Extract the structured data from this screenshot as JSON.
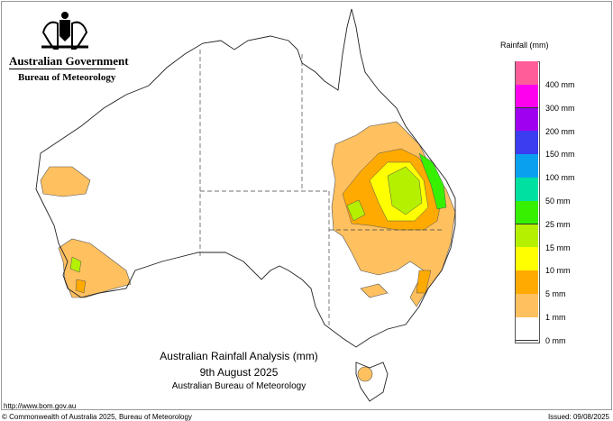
{
  "header": {
    "government": "Australian Government",
    "agency": "Bureau of Meteorology"
  },
  "title": {
    "line1": "Australian Rainfall Analysis (mm)",
    "line2": "9th August 2025",
    "line3": "Australian Bureau of Meteorology"
  },
  "footer": {
    "url": "http://www.bom.gov.au",
    "copyright": "© Commonwealth of Australia 2025, Bureau of Meteorology",
    "issued": "Issued: 09/08/2025"
  },
  "legend": {
    "title": "Rainfall (mm)",
    "colors": [
      "#ff5c9a",
      "#ff00ee",
      "#a000f0",
      "#3c3cf0",
      "#0aa0f0",
      "#00e0a0",
      "#36f000",
      "#b4f000",
      "#ffff00",
      "#ffaa00",
      "#ffc060",
      "#ffffff"
    ],
    "labels": [
      "400 mm",
      "300 mm",
      "200 mm",
      "150 mm",
      "100 mm",
      "50 mm",
      "25 mm",
      "15 mm",
      "10 mm",
      "5 mm",
      "1 mm",
      "0 mm"
    ]
  }
}
